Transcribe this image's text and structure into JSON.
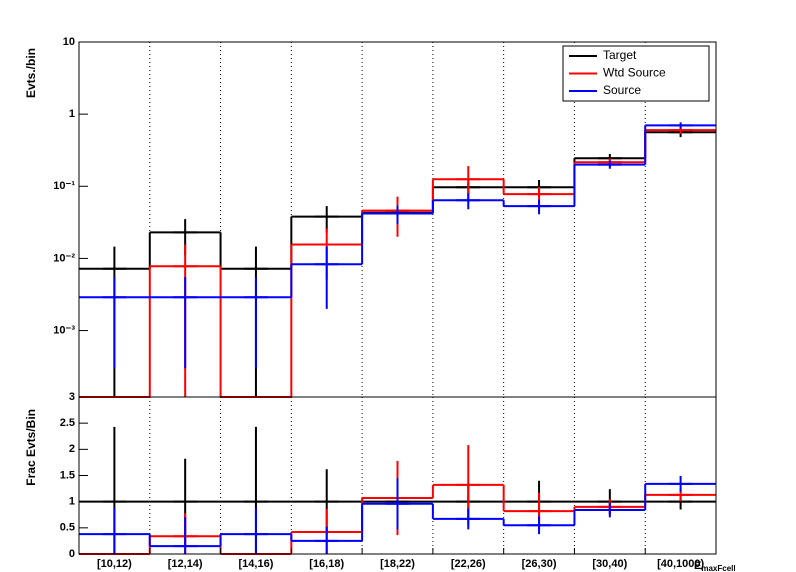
{
  "chart_data": [
    {
      "type": "step",
      "ylabel": "Evts./bin",
      "log_y": true,
      "grid_x": true,
      "legend": "upper right",
      "ylim": [
        0.00012,
        10
      ],
      "yticks": [
        {
          "value": 0.001,
          "label": "10⁻³"
        },
        {
          "value": 0.01,
          "label": "10⁻²"
        },
        {
          "value": 0.1,
          "label": "10⁻¹"
        },
        1,
        10
      ],
      "series": [
        {
          "name": "Target",
          "color": "#000000",
          "values": [
            0.0072,
            0.023,
            0.0072,
            0.038,
            0.043,
            0.097,
            0.097,
            0.245,
            0.56
          ],
          "errors": [
            0.0074,
            0.012,
            0.0074,
            0.015,
            0.008,
            0.02,
            0.025,
            0.035,
            0.08
          ]
        },
        {
          "name": "Wtd Source",
          "color": "#ff0000",
          "values": [
            0,
            0.0078,
            0,
            0.0156,
            0.046,
            0.125,
            0.078,
            0.215,
            0.6
          ],
          "errors": [
            0,
            0.0078,
            0,
            0.0105,
            0.026,
            0.065,
            0.02,
            0.03,
            0.07
          ]
        },
        {
          "name": "Source",
          "color": "#0000ff",
          "values": [
            0.0029,
            0.0029,
            0.0029,
            0.0083,
            0.042,
            0.064,
            0.053,
            0.2,
            0.7
          ],
          "errors": [
            0.0026,
            0.0026,
            0.0026,
            0.0063,
            0.012,
            0.016,
            0.012,
            0.025,
            0.07
          ]
        }
      ]
    },
    {
      "type": "step",
      "ylabel": "Frac Evts/Bin",
      "log_y": false,
      "grid_x": true,
      "categories": [
        "[10,12)",
        "[12,14)",
        "[14,16)",
        "[16,18)",
        "[18,22)",
        "[22,26)",
        "[26,30)",
        "[30,40)",
        "[40,1000)"
      ],
      "xlabel": {
        "main": "E",
        "sub": "maxFcell"
      },
      "ylim": [
        0,
        3
      ],
      "yticks": [
        0,
        0.5,
        1,
        1.5,
        2,
        2.5,
        3
      ],
      "series": [
        {
          "name": "Target",
          "color": "#000000",
          "values": [
            1,
            1,
            1,
            1,
            1,
            1,
            1,
            1,
            1
          ],
          "errors": [
            1.43,
            0.82,
            1.43,
            0.62,
            0.35,
            0.3,
            0.4,
            0.24,
            0.15
          ]
        },
        {
          "name": "Wtd Source",
          "color": "#ff0000",
          "values": [
            0,
            0.34,
            0,
            0.42,
            1.07,
            1.32,
            0.82,
            0.9,
            1.13
          ],
          "errors": [
            0,
            0.44,
            0,
            0.44,
            0.71,
            0.76,
            0.35,
            0.15,
            0.12
          ]
        },
        {
          "name": "Source",
          "color": "#0000ff",
          "values": [
            0.38,
            0.15,
            0.38,
            0.25,
            0.96,
            0.67,
            0.55,
            0.84,
            1.34
          ],
          "errors": [
            0.5,
            0.55,
            0.5,
            0.27,
            0.49,
            0.2,
            0.17,
            0.14,
            0.15
          ]
        }
      ]
    }
  ]
}
